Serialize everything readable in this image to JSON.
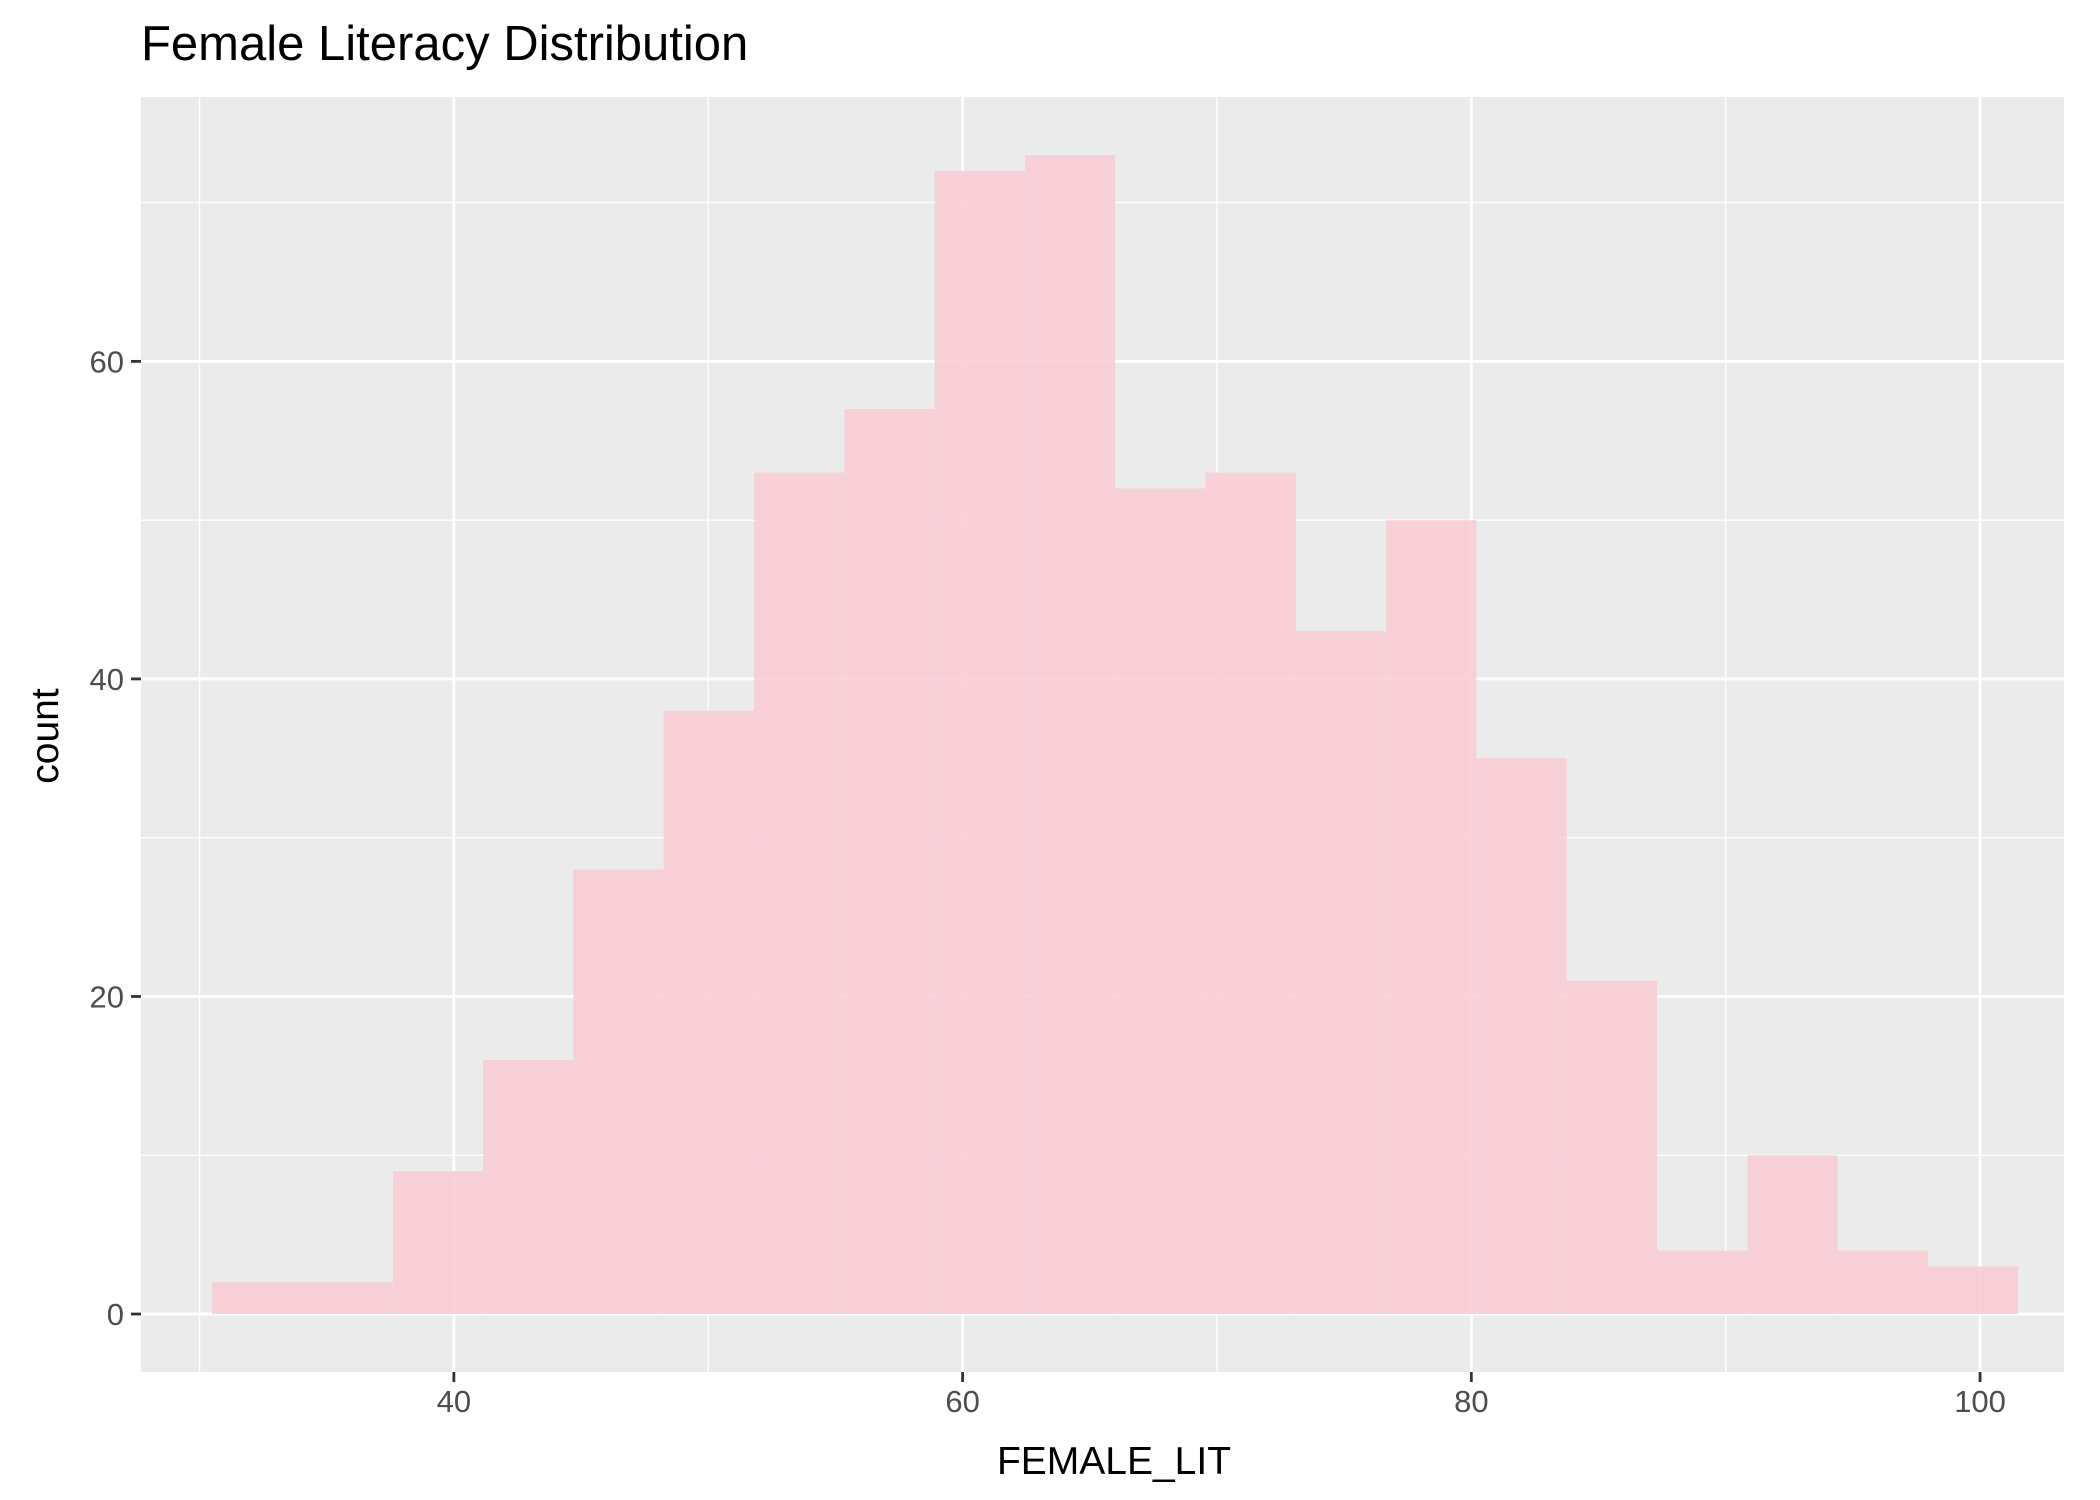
{
  "chart_data": {
    "type": "bar",
    "title": "Female Literacy Distribution",
    "xlabel": "FEMALE_LIT",
    "ylabel": "count",
    "xlim": [
      27.7,
      103.3
    ],
    "ylim": [
      -3.65,
      76.65
    ],
    "x_ticks": [
      40,
      60,
      80,
      100
    ],
    "x_minor": [
      30,
      50,
      70,
      90
    ],
    "y_ticks": [
      0,
      20,
      40,
      60
    ],
    "y_minor": [
      10,
      30,
      50,
      70
    ],
    "grid": true,
    "bin_width": 3.55,
    "bins": [
      {
        "x0": 30.5,
        "x1": 34.05,
        "count": 2
      },
      {
        "x0": 34.05,
        "x1": 37.6,
        "count": 2
      },
      {
        "x0": 37.6,
        "x1": 41.15,
        "count": 9
      },
      {
        "x0": 41.15,
        "x1": 44.7,
        "count": 16
      },
      {
        "x0": 44.7,
        "x1": 48.25,
        "count": 28
      },
      {
        "x0": 48.25,
        "x1": 51.8,
        "count": 38
      },
      {
        "x0": 51.8,
        "x1": 55.35,
        "count": 53
      },
      {
        "x0": 55.35,
        "x1": 58.9,
        "count": 57
      },
      {
        "x0": 58.9,
        "x1": 62.45,
        "count": 72
      },
      {
        "x0": 62.45,
        "x1": 66.0,
        "count": 73
      },
      {
        "x0": 66.0,
        "x1": 69.55,
        "count": 52
      },
      {
        "x0": 69.55,
        "x1": 73.1,
        "count": 53
      },
      {
        "x0": 73.1,
        "x1": 76.65,
        "count": 43
      },
      {
        "x0": 76.65,
        "x1": 80.2,
        "count": 50
      },
      {
        "x0": 80.2,
        "x1": 83.75,
        "count": 35
      },
      {
        "x0": 83.75,
        "x1": 87.3,
        "count": 21
      },
      {
        "x0": 87.3,
        "x1": 90.85,
        "count": 4
      },
      {
        "x0": 90.85,
        "x1": 94.4,
        "count": 10
      },
      {
        "x0": 94.4,
        "x1": 97.95,
        "count": 4
      },
      {
        "x0": 97.95,
        "x1": 101.5,
        "count": 3
      }
    ],
    "colors": {
      "bar_fill": "#f8ccd5",
      "panel": "#ebebeb",
      "grid": "#ffffff",
      "tick": "#333333"
    }
  }
}
